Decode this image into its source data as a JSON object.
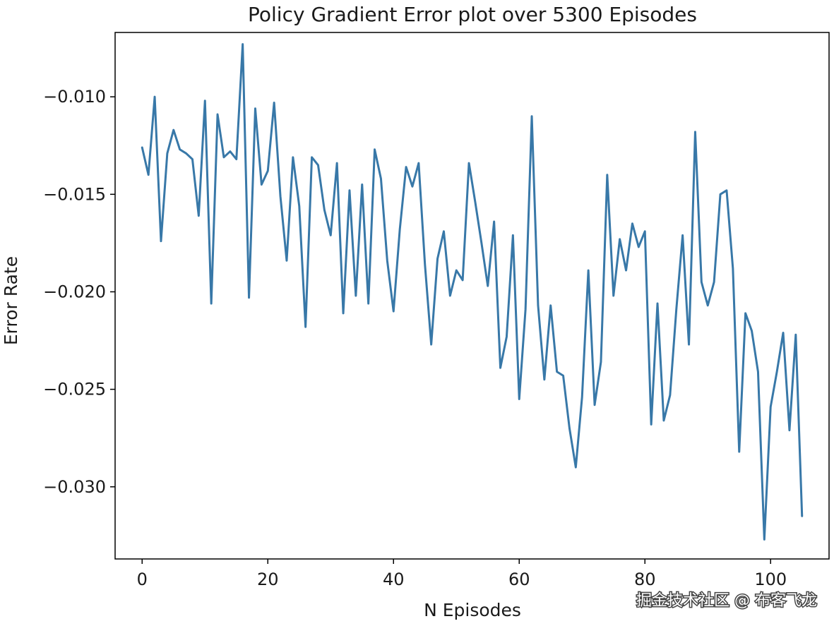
{
  "chart_data": {
    "type": "line",
    "title": "Policy Gradient Error plot over 5300 Episodes",
    "xlabel": "N Episodes",
    "ylabel": "Error Rate",
    "xlim": [
      -4.3,
      109.3
    ],
    "ylim": [
      -0.0337,
      -0.0067
    ],
    "xticks": [
      0,
      20,
      40,
      60,
      80,
      100
    ],
    "yticks": [
      -0.03,
      -0.025,
      -0.02,
      -0.015,
      -0.01
    ],
    "xtick_labels": [
      "0",
      "20",
      "40",
      "60",
      "80",
      "100"
    ],
    "ytick_labels": [
      "−0.030",
      "−0.025",
      "−0.020",
      "−0.015",
      "−0.010"
    ],
    "grid": false,
    "series": [
      {
        "color": "#3878a8",
        "x": [
          0,
          1,
          2,
          3,
          4,
          5,
          6,
          7,
          8,
          9,
          10,
          11,
          12,
          13,
          14,
          15,
          16,
          17,
          18,
          19,
          20,
          21,
          22,
          23,
          24,
          25,
          26,
          27,
          28,
          29,
          30,
          31,
          32,
          33,
          34,
          35,
          36,
          37,
          38,
          39,
          40,
          41,
          42,
          43,
          44,
          45,
          46,
          47,
          48,
          49,
          50,
          51,
          52,
          53,
          54,
          55,
          56,
          57,
          58,
          59,
          60,
          61,
          62,
          63,
          64,
          65,
          66,
          67,
          68,
          69,
          70,
          71,
          72,
          73,
          74,
          75,
          76,
          77,
          78,
          79,
          80,
          81,
          82,
          83,
          84,
          85,
          86,
          87,
          88,
          89,
          90,
          91,
          92,
          93,
          94,
          95,
          96,
          97,
          98,
          99,
          100,
          101,
          102,
          103,
          104,
          105
        ],
        "y": [
          -0.0126,
          -0.014,
          -0.01,
          -0.0174,
          -0.0129,
          -0.0117,
          -0.0127,
          -0.0129,
          -0.0132,
          -0.0161,
          -0.0102,
          -0.0206,
          -0.0109,
          -0.0131,
          -0.0128,
          -0.0132,
          -0.0073,
          -0.0203,
          -0.0106,
          -0.0145,
          -0.0138,
          -0.0103,
          -0.0151,
          -0.0184,
          -0.0131,
          -0.0156,
          -0.0218,
          -0.0131,
          -0.0135,
          -0.0158,
          -0.0171,
          -0.0134,
          -0.0211,
          -0.0148,
          -0.0202,
          -0.0145,
          -0.0206,
          -0.0127,
          -0.0142,
          -0.0184,
          -0.021,
          -0.0168,
          -0.0136,
          -0.0146,
          -0.0134,
          -0.0186,
          -0.0227,
          -0.0183,
          -0.0169,
          -0.0202,
          -0.0189,
          -0.0194,
          -0.0134,
          -0.0154,
          -0.0175,
          -0.0197,
          -0.0164,
          -0.0239,
          -0.0223,
          -0.0171,
          -0.0255,
          -0.0209,
          -0.011,
          -0.0207,
          -0.0245,
          -0.0207,
          -0.0241,
          -0.0243,
          -0.027,
          -0.029,
          -0.0254,
          -0.0189,
          -0.0258,
          -0.0236,
          -0.014,
          -0.0202,
          -0.0173,
          -0.0189,
          -0.0165,
          -0.0177,
          -0.0169,
          -0.0268,
          -0.0206,
          -0.0266,
          -0.0253,
          -0.0209,
          -0.0171,
          -0.0227,
          -0.0118,
          -0.0195,
          -0.0207,
          -0.0195,
          -0.015,
          -0.0148,
          -0.0188,
          -0.0282,
          -0.0211,
          -0.022,
          -0.0241,
          -0.0327,
          -0.0259,
          -0.0241,
          -0.0221,
          -0.0271,
          -0.0222,
          -0.0315
        ]
      }
    ]
  },
  "watermark": "掘金技术社区 @ 布客飞龙"
}
